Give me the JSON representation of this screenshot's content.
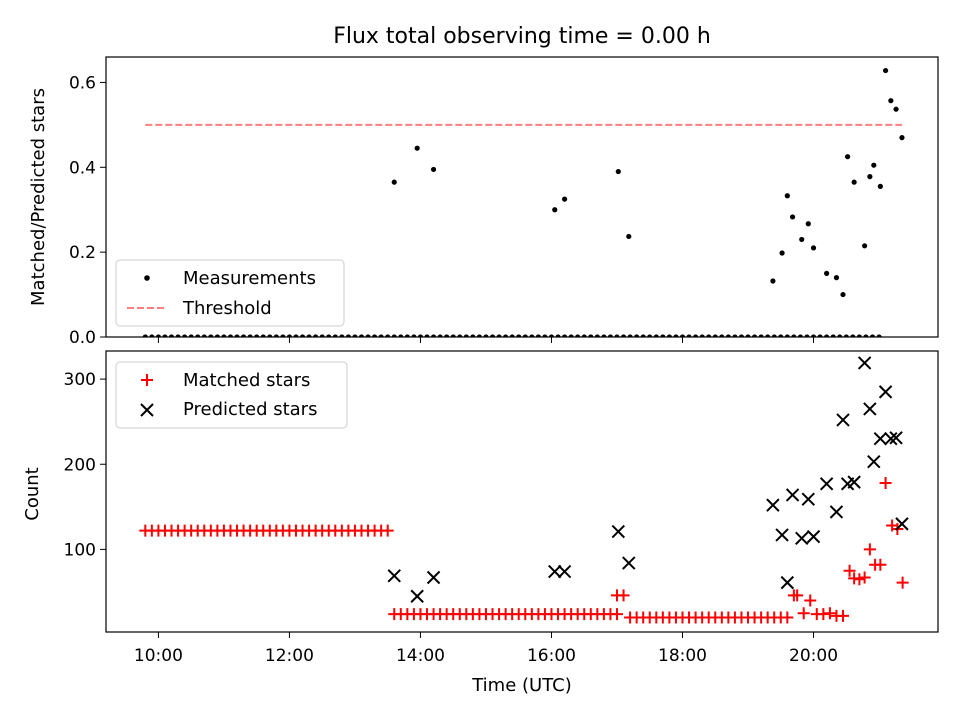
{
  "figure_title": "Flux total observing time = 0.00 h",
  "chart_data": [
    {
      "type": "scatter",
      "title": "Flux total observing time = 0.00 h",
      "xlabel": "",
      "ylabel": "Matched/Predicted stars",
      "xlim": [
        9.2,
        21.9
      ],
      "ylim": [
        0.0,
        0.66
      ],
      "yticks": [
        0.0,
        0.2,
        0.4,
        0.6
      ],
      "ytick_labels": [
        "0.0",
        "0.2",
        "0.4",
        "0.6"
      ],
      "xticks": [
        10,
        12,
        14,
        16,
        18,
        20
      ],
      "grid": false,
      "legend_position": "lower-left",
      "series": [
        {
          "name": "Measurements",
          "marker": "dot",
          "color": "#000000",
          "x": [
            13.6,
            13.95,
            14.2,
            16.05,
            16.2,
            17.02,
            17.18,
            19.38,
            19.52,
            19.6,
            19.68,
            19.82,
            19.92,
            20.0,
            20.2,
            20.35,
            20.45,
            20.52,
            20.62,
            20.78,
            20.86,
            20.92,
            21.02,
            21.1,
            21.18,
            21.26,
            21.35
          ],
          "y": [
            0.365,
            0.445,
            0.395,
            0.3,
            0.325,
            0.39,
            0.237,
            0.132,
            0.198,
            0.333,
            0.283,
            0.23,
            0.267,
            0.21,
            0.15,
            0.14,
            0.1,
            0.425,
            0.365,
            0.215,
            0.378,
            0.405,
            0.355,
            0.628,
            0.557,
            0.537,
            0.47
          ]
        },
        {
          "name": "Measurements",
          "marker": "dot",
          "color": "#000000",
          "x_range": [
            9.8,
            21.0
          ],
          "x_step": 0.1,
          "y_constant": 0.0
        },
        {
          "name": "Threshold",
          "type": "line",
          "style": "dashed",
          "color": "#ff7f7f",
          "x": [
            9.8,
            21.35
          ],
          "y": [
            0.5,
            0.5
          ]
        }
      ]
    },
    {
      "type": "scatter",
      "title": "",
      "xlabel": "Time (UTC)",
      "ylabel": "Count",
      "xlim": [
        9.2,
        21.9
      ],
      "ylim": [
        3,
        333
      ],
      "yticks": [
        100,
        200,
        300
      ],
      "ytick_labels": [
        "100",
        "200",
        "300"
      ],
      "xticks": [
        10,
        12,
        14,
        16,
        18,
        20
      ],
      "xtick_labels": [
        "10:00",
        "12:00",
        "14:00",
        "16:00",
        "18:00",
        "20:00"
      ],
      "grid": false,
      "legend_position": "upper-left",
      "series": [
        {
          "name": "Matched stars",
          "marker": "plus",
          "color": "#ff0000",
          "segments": [
            {
              "x_range": [
                9.8,
                13.55
              ],
              "x_step": 0.1,
              "y": 122
            },
            {
              "x_range": [
                13.6,
                17.0
              ],
              "x_step": 0.1,
              "y": 24
            },
            {
              "x_range": [
                17.2,
                19.6
              ],
              "x_step": 0.1,
              "y": 20
            }
          ],
          "x": [
            17.0,
            17.1,
            19.7,
            19.75,
            19.85,
            19.95,
            20.05,
            20.15,
            20.25,
            20.35,
            20.45,
            20.55,
            20.62,
            20.7,
            20.78,
            20.86,
            20.94,
            21.02,
            21.1,
            21.2,
            21.28,
            21.36
          ],
          "y": [
            46,
            46,
            46,
            46,
            25,
            40,
            24,
            24,
            25,
            22,
            22,
            75,
            66,
            65,
            67,
            100,
            82,
            82,
            178,
            128,
            124,
            61
          ]
        },
        {
          "name": "Predicted stars",
          "marker": "x",
          "color": "#000000",
          "x": [
            13.6,
            13.95,
            14.2,
            16.05,
            16.2,
            17.02,
            17.18,
            19.38,
            19.52,
            19.6,
            19.68,
            19.82,
            19.92,
            20.0,
            20.2,
            20.35,
            20.45,
            20.52,
            20.62,
            20.78,
            20.86,
            20.92,
            21.02,
            21.1,
            21.18,
            21.26,
            21.35
          ],
          "y": [
            69,
            45,
            67,
            74,
            74,
            121,
            84,
            152,
            117,
            61,
            164,
            113,
            159,
            115,
            177,
            144,
            252,
            177,
            179,
            319,
            265,
            203,
            230,
            285,
            230,
            231,
            130
          ]
        }
      ]
    }
  ]
}
